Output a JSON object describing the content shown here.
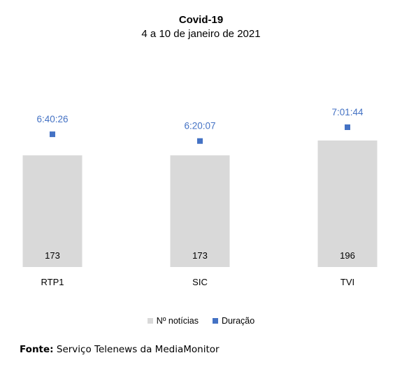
{
  "chart_data": {
    "type": "bar",
    "title": "Covid-19",
    "subtitle": "4 a 10 de janeiro de 2021",
    "categories": [
      "RTP1",
      "SIC",
      "TVI"
    ],
    "series": [
      {
        "name": "Nº notícias",
        "type": "bar",
        "values": [
          173,
          173,
          196
        ],
        "color": "#d9d9d9"
      },
      {
        "name": "Duração",
        "type": "scatter",
        "values": [
          "6:40:26",
          "6:20:07",
          "7:01:44"
        ],
        "seconds": [
          24026,
          22807,
          25304
        ],
        "color": "#4472c4"
      }
    ],
    "grid": false,
    "legend_position": "bottom"
  },
  "colors": {
    "duration_label": "#4472c4"
  },
  "footer": {
    "label": "Fonte:",
    "text": " Serviço Telenews da MediaMonitor"
  }
}
